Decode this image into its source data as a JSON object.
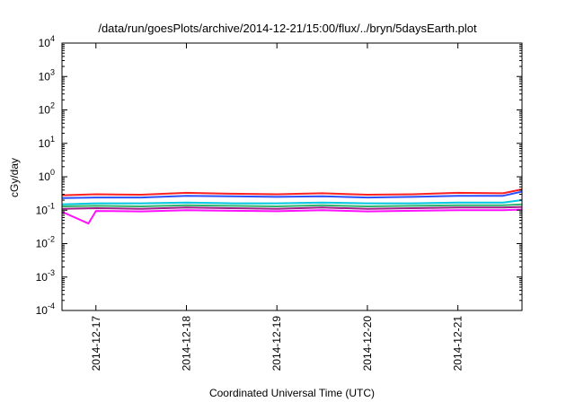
{
  "chart_data": {
    "type": "line",
    "title": "/data/run/goesPlots/archive/2014-12-21/15:00/flux/../bryn/5daysEarth.plot",
    "xlabel": "Coordinated Universal Time (UTC)",
    "ylabel": "cGy/day",
    "yscale": "log",
    "ylim": [
      0.0001,
      10000
    ],
    "xlim": [
      "2014-12-16T15:00",
      "2014-12-21T17:00"
    ],
    "x_ticks": [
      "2014-12-17",
      "2014-12-18",
      "2014-12-19",
      "2014-12-20",
      "2014-12-21"
    ],
    "y_ticks": [
      {
        "base": "10",
        "exp": "4"
      },
      {
        "base": "10",
        "exp": "3"
      },
      {
        "base": "10",
        "exp": "2"
      },
      {
        "base": "10",
        "exp": "1"
      },
      {
        "base": "10",
        "exp": "0"
      },
      {
        "base": "10",
        "exp": "-1"
      },
      {
        "base": "10",
        "exp": "-2"
      },
      {
        "base": "10",
        "exp": "-3"
      },
      {
        "base": "10",
        "exp": "-4"
      }
    ],
    "grid": false,
    "legend": "none",
    "series": [
      {
        "color": "#ff2020",
        "x": [
          "2014-12-16T15:00",
          "2014-12-17T00:00",
          "2014-12-17T12:00",
          "2014-12-18T00:00",
          "2014-12-18T12:00",
          "2014-12-19T00:00",
          "2014-12-19T12:00",
          "2014-12-20T00:00",
          "2014-12-20T12:00",
          "2014-12-21T00:00",
          "2014-12-21T12:00",
          "2014-12-21T17:00"
        ],
        "values": [
          0.28,
          0.3,
          0.29,
          0.33,
          0.31,
          0.3,
          0.32,
          0.29,
          0.3,
          0.33,
          0.32,
          0.42
        ]
      },
      {
        "color": "#2a4fff",
        "x": [
          "2014-12-16T15:00",
          "2014-12-17T00:00",
          "2014-12-17T12:00",
          "2014-12-18T00:00",
          "2014-12-18T12:00",
          "2014-12-19T00:00",
          "2014-12-19T12:00",
          "2014-12-20T00:00",
          "2014-12-20T12:00",
          "2014-12-21T00:00",
          "2014-12-21T12:00",
          "2014-12-21T17:00"
        ],
        "values": [
          0.23,
          0.24,
          0.24,
          0.27,
          0.26,
          0.25,
          0.26,
          0.24,
          0.25,
          0.27,
          0.27,
          0.36
        ]
      },
      {
        "color": "#00c8e0",
        "x": [
          "2014-12-16T15:00",
          "2014-12-17T00:00",
          "2014-12-17T12:00",
          "2014-12-18T00:00",
          "2014-12-18T12:00",
          "2014-12-19T00:00",
          "2014-12-19T12:00",
          "2014-12-20T00:00",
          "2014-12-20T12:00",
          "2014-12-21T00:00",
          "2014-12-21T12:00",
          "2014-12-21T17:00"
        ],
        "values": [
          0.15,
          0.16,
          0.16,
          0.17,
          0.16,
          0.16,
          0.17,
          0.16,
          0.16,
          0.17,
          0.17,
          0.2
        ]
      },
      {
        "color": "#2fb26a",
        "x": [
          "2014-12-16T15:00",
          "2014-12-17T00:00",
          "2014-12-17T12:00",
          "2014-12-18T00:00",
          "2014-12-18T12:00",
          "2014-12-19T00:00",
          "2014-12-19T12:00",
          "2014-12-20T00:00",
          "2014-12-20T12:00",
          "2014-12-21T00:00",
          "2014-12-21T12:00",
          "2014-12-21T17:00"
        ],
        "values": [
          0.13,
          0.135,
          0.13,
          0.14,
          0.135,
          0.13,
          0.14,
          0.13,
          0.135,
          0.14,
          0.14,
          0.15
        ]
      },
      {
        "color": "#a0208a",
        "x": [
          "2014-12-16T15:00",
          "2014-12-17T00:00",
          "2014-12-17T12:00",
          "2014-12-18T00:00",
          "2014-12-18T12:00",
          "2014-12-19T00:00",
          "2014-12-19T12:00",
          "2014-12-20T00:00",
          "2014-12-20T12:00",
          "2014-12-21T00:00",
          "2014-12-21T12:00",
          "2014-12-21T17:00"
        ],
        "values": [
          0.11,
          0.115,
          0.11,
          0.12,
          0.115,
          0.11,
          0.12,
          0.11,
          0.115,
          0.12,
          0.12,
          0.125
        ]
      },
      {
        "color": "#ff10ff",
        "x": [
          "2014-12-16T15:00",
          "2014-12-16T22:00",
          "2014-12-17T00:00",
          "2014-12-17T12:00",
          "2014-12-18T00:00",
          "2014-12-18T12:00",
          "2014-12-19T00:00",
          "2014-12-19T12:00",
          "2014-12-20T00:00",
          "2014-12-20T12:00",
          "2014-12-21T00:00",
          "2014-12-21T12:00",
          "2014-12-21T17:00"
        ],
        "values": [
          0.09,
          0.04,
          0.095,
          0.092,
          0.1,
          0.096,
          0.093,
          0.1,
          0.092,
          0.096,
          0.1,
          0.1,
          0.105
        ]
      }
    ]
  }
}
